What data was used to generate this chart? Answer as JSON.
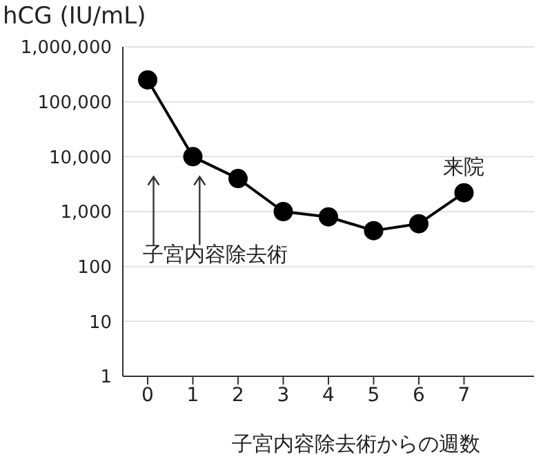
{
  "chart_data": {
    "type": "line",
    "ylabel": "hCG (IU/mL)",
    "xlabel": "子宮内容除去術からの週数",
    "x": [
      0,
      1,
      2,
      3,
      4,
      5,
      6,
      7
    ],
    "series": [
      {
        "color": "#000000",
        "values": [
          250000,
          10000,
          4000,
          1000,
          800,
          450,
          600,
          2200
        ]
      }
    ],
    "xlim": [
      -0.55,
      8.55
    ],
    "xticks": [
      0,
      1,
      2,
      3,
      4,
      5,
      6,
      7
    ],
    "log": "y",
    "ylim": [
      1,
      1000000
    ],
    "yticks": [
      1,
      10,
      100,
      {
        "value": 1000,
        "label": "1,000"
      },
      {
        "value": 10000,
        "label": "10,000"
      },
      {
        "value": 100000,
        "label": "100,000"
      },
      {
        "value": 1000000,
        "label": "1,000,000"
      }
    ],
    "grid": "y",
    "marker": "circle",
    "line_style": "solid",
    "annotations": [
      {
        "text": "来院",
        "x": 7,
        "y": 2200
      },
      "子宮内容除去術"
    ]
  }
}
